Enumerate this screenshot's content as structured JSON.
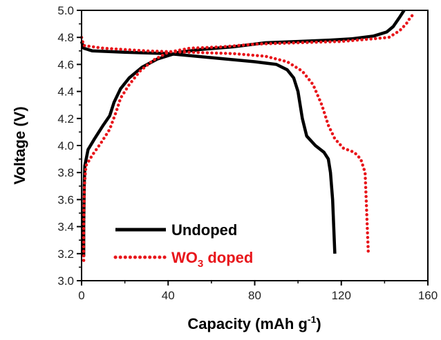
{
  "chart_data": {
    "type": "line",
    "title": "",
    "xlabel": "Capacity (mAh g",
    "xlabel_sup": "-1",
    "xlabel_close": ")",
    "ylabel": "Voltage (V)",
    "xlim": [
      0,
      160
    ],
    "ylim": [
      3.0,
      5.0
    ],
    "xticks": [
      0,
      40,
      80,
      120,
      160
    ],
    "xtick_labels": [
      "0",
      "40",
      "80",
      "120",
      "160"
    ],
    "yticks": [
      3.0,
      3.2,
      3.4,
      3.6,
      3.8,
      4.0,
      4.2,
      4.4,
      4.6,
      4.8,
      5.0
    ],
    "ytick_labels": [
      "3.0",
      "3.2",
      "3.4",
      "3.6",
      "3.8",
      "4.0",
      "4.2",
      "4.4",
      "4.6",
      "4.8",
      "5.0"
    ],
    "grid": false,
    "legend_position": "bottom-left",
    "series": [
      {
        "name": "Undoped",
        "legend_main": "Undoped",
        "legend_sub": "",
        "legend_rest": "",
        "color": "#000000",
        "style": "solid",
        "segments": [
          [
            [
              1,
              3.18
            ],
            [
              1,
              3.4
            ],
            [
              1.2,
              3.7
            ],
            [
              1.5,
              3.85
            ],
            [
              3,
              3.97
            ],
            [
              6,
              4.05
            ],
            [
              10,
              4.15
            ],
            [
              13,
              4.22
            ],
            [
              15,
              4.32
            ],
            [
              18,
              4.42
            ],
            [
              22,
              4.5
            ],
            [
              28,
              4.58
            ],
            [
              35,
              4.64
            ],
            [
              45,
              4.69
            ],
            [
              55,
              4.71
            ],
            [
              70,
              4.73
            ],
            [
              85,
              4.76
            ],
            [
              100,
              4.77
            ],
            [
              115,
              4.78
            ],
            [
              125,
              4.79
            ],
            [
              135,
              4.81
            ],
            [
              141,
              4.84
            ],
            [
              144,
              4.88
            ],
            [
              147,
              4.95
            ],
            [
              149,
              5.0
            ]
          ],
          [
            [
              0,
              4.77
            ],
            [
              1,
              4.72
            ],
            [
              5,
              4.7
            ],
            [
              20,
              4.69
            ],
            [
              40,
              4.68
            ],
            [
              60,
              4.65
            ],
            [
              80,
              4.62
            ],
            [
              90,
              4.6
            ],
            [
              95,
              4.56
            ],
            [
              98,
              4.5
            ],
            [
              100,
              4.4
            ],
            [
              102,
              4.2
            ],
            [
              104,
              4.07
            ],
            [
              108,
              4.0
            ],
            [
              112,
              3.95
            ],
            [
              114,
              3.9
            ],
            [
              115,
              3.8
            ],
            [
              116,
              3.6
            ],
            [
              116.5,
              3.4
            ],
            [
              117,
              3.2
            ]
          ]
        ]
      },
      {
        "name": "WO3 doped",
        "legend_main": "WO",
        "legend_sub": "3",
        "legend_rest": " doped",
        "color": "#e8161b",
        "style": "dotted",
        "segments": [
          [
            [
              1,
              3.15
            ],
            [
              1,
              3.4
            ],
            [
              1.3,
              3.7
            ],
            [
              2,
              3.85
            ],
            [
              5,
              3.93
            ],
            [
              9,
              4.02
            ],
            [
              13,
              4.12
            ],
            [
              16,
              4.25
            ],
            [
              18,
              4.35
            ],
            [
              22,
              4.45
            ],
            [
              27,
              4.55
            ],
            [
              33,
              4.63
            ],
            [
              40,
              4.69
            ],
            [
              50,
              4.72
            ],
            [
              65,
              4.73
            ],
            [
              80,
              4.75
            ],
            [
              100,
              4.76
            ],
            [
              120,
              4.77
            ],
            [
              135,
              4.79
            ],
            [
              142,
              4.8
            ],
            [
              147,
              4.85
            ],
            [
              150,
              4.9
            ],
            [
              152,
              4.95
            ],
            [
              154,
              4.98
            ]
          ],
          [
            [
              0,
              4.8
            ],
            [
              1,
              4.74
            ],
            [
              10,
              4.72
            ],
            [
              30,
              4.7
            ],
            [
              50,
              4.69
            ],
            [
              70,
              4.68
            ],
            [
              85,
              4.66
            ],
            [
              95,
              4.62
            ],
            [
              102,
              4.55
            ],
            [
              107,
              4.45
            ],
            [
              111,
              4.3
            ],
            [
              114,
              4.15
            ],
            [
              117,
              4.05
            ],
            [
              121,
              3.98
            ],
            [
              126,
              3.95
            ],
            [
              129,
              3.9
            ],
            [
              131,
              3.8
            ],
            [
              131.5,
              3.6
            ],
            [
              132,
              3.4
            ],
            [
              132.5,
              3.2
            ]
          ]
        ]
      }
    ]
  }
}
